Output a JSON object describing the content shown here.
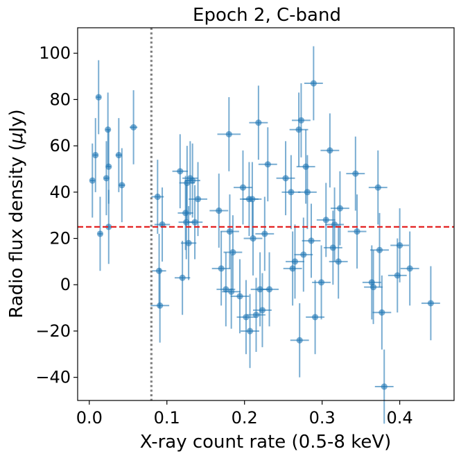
{
  "chart_data": {
    "type": "scatter",
    "title": "Epoch 2, C-band",
    "xlabel": "X-ray count rate (0.5-8 keV)",
    "ylabel_prefix": "Radio flux density (",
    "ylabel_mu": "μ",
    "ylabel_suffix": "Jy)",
    "xlim": [
      -0.015,
      0.47
    ],
    "ylim": [
      -50,
      111
    ],
    "xticks": [
      0.0,
      0.1,
      0.2,
      0.3,
      0.4
    ],
    "xtick_labels": [
      "0.0",
      "0.1",
      "0.2",
      "0.3",
      "0.4"
    ],
    "yticks": [
      -40,
      -20,
      0,
      20,
      40,
      60,
      80,
      100
    ],
    "ytick_labels": [
      "−40",
      "−20",
      "0",
      "20",
      "40",
      "60",
      "80",
      "100"
    ],
    "threshold_y": 25,
    "threshold_color": "#e32020",
    "vline_x": 0.08,
    "vline_color": "#808080",
    "marker_color": "#1f77b4",
    "points": [
      {
        "x": 0.004,
        "y": 45,
        "xerr": 0.003,
        "yerr": 16
      },
      {
        "x": 0.008,
        "y": 56,
        "xerr": 0.003,
        "yerr": 16
      },
      {
        "x": 0.012,
        "y": 81,
        "xerr": 0.003,
        "yerr": 16
      },
      {
        "x": 0.014,
        "y": 22,
        "xerr": 0.003,
        "yerr": 16
      },
      {
        "x": 0.022,
        "y": 46,
        "xerr": 0.003,
        "yerr": 16
      },
      {
        "x": 0.024,
        "y": 67,
        "xerr": 0.003,
        "yerr": 16
      },
      {
        "x": 0.025,
        "y": 51,
        "xerr": 0.003,
        "yerr": 16
      },
      {
        "x": 0.025,
        "y": 25,
        "xerr": 0.003,
        "yerr": 16
      },
      {
        "x": 0.038,
        "y": 56,
        "xerr": 0.004,
        "yerr": 16
      },
      {
        "x": 0.042,
        "y": 43,
        "xerr": 0.004,
        "yerr": 16
      },
      {
        "x": 0.057,
        "y": 68,
        "xerr": 0.005,
        "yerr": 16
      },
      {
        "x": 0.088,
        "y": 38,
        "xerr": 0.008,
        "yerr": 16
      },
      {
        "x": 0.09,
        "y": 6,
        "xerr": 0.009,
        "yerr": 16
      },
      {
        "x": 0.091,
        "y": -9,
        "xerr": 0.012,
        "yerr": 16
      },
      {
        "x": 0.094,
        "y": 26,
        "xerr": 0.01,
        "yerr": 16
      },
      {
        "x": 0.117,
        "y": 49,
        "xerr": 0.01,
        "yerr": 16
      },
      {
        "x": 0.12,
        "y": 3,
        "xerr": 0.01,
        "yerr": 16
      },
      {
        "x": 0.124,
        "y": 31,
        "xerr": 0.01,
        "yerr": 16
      },
      {
        "x": 0.125,
        "y": 27,
        "xerr": 0.01,
        "yerr": 16
      },
      {
        "x": 0.126,
        "y": 44,
        "xerr": 0.01,
        "yerr": 16
      },
      {
        "x": 0.128,
        "y": 18,
        "xerr": 0.01,
        "yerr": 16
      },
      {
        "x": 0.13,
        "y": 46,
        "xerr": 0.01,
        "yerr": 16
      },
      {
        "x": 0.133,
        "y": 45,
        "xerr": 0.01,
        "yerr": 16
      },
      {
        "x": 0.136,
        "y": 27,
        "xerr": 0.01,
        "yerr": 16
      },
      {
        "x": 0.14,
        "y": 37,
        "xerr": 0.012,
        "yerr": 16
      },
      {
        "x": 0.167,
        "y": 32,
        "xerr": 0.012,
        "yerr": 16
      },
      {
        "x": 0.17,
        "y": 7,
        "xerr": 0.012,
        "yerr": 16
      },
      {
        "x": 0.176,
        "y": -2,
        "xerr": 0.012,
        "yerr": 16
      },
      {
        "x": 0.18,
        "y": 65,
        "xerr": 0.015,
        "yerr": 16
      },
      {
        "x": 0.181,
        "y": 23,
        "xerr": 0.012,
        "yerr": 16
      },
      {
        "x": 0.183,
        "y": -3,
        "xerr": 0.012,
        "yerr": 16
      },
      {
        "x": 0.185,
        "y": 14,
        "xerr": 0.012,
        "yerr": 16
      },
      {
        "x": 0.194,
        "y": -5,
        "xerr": 0.012,
        "yerr": 16
      },
      {
        "x": 0.198,
        "y": 42,
        "xerr": 0.012,
        "yerr": 16
      },
      {
        "x": 0.202,
        "y": -14,
        "xerr": 0.012,
        "yerr": 16
      },
      {
        "x": 0.206,
        "y": 37,
        "xerr": 0.012,
        "yerr": 16
      },
      {
        "x": 0.207,
        "y": -20,
        "xerr": 0.012,
        "yerr": 16
      },
      {
        "x": 0.21,
        "y": 37,
        "xerr": 0.012,
        "yerr": 16
      },
      {
        "x": 0.211,
        "y": 20,
        "xerr": 0.012,
        "yerr": 16
      },
      {
        "x": 0.215,
        "y": -13,
        "xerr": 0.012,
        "yerr": 16
      },
      {
        "x": 0.218,
        "y": 70,
        "xerr": 0.012,
        "yerr": 16
      },
      {
        "x": 0.22,
        "y": -2,
        "xerr": 0.012,
        "yerr": 16
      },
      {
        "x": 0.223,
        "y": -11,
        "xerr": 0.012,
        "yerr": 16
      },
      {
        "x": 0.226,
        "y": 22,
        "xerr": 0.012,
        "yerr": 16
      },
      {
        "x": 0.23,
        "y": 52,
        "xerr": 0.012,
        "yerr": 16
      },
      {
        "x": 0.232,
        "y": -2,
        "xerr": 0.012,
        "yerr": 16
      },
      {
        "x": 0.253,
        "y": 46,
        "xerr": 0.012,
        "yerr": 16
      },
      {
        "x": 0.26,
        "y": 40,
        "xerr": 0.012,
        "yerr": 16
      },
      {
        "x": 0.262,
        "y": 7,
        "xerr": 0.012,
        "yerr": 16
      },
      {
        "x": 0.265,
        "y": 10,
        "xerr": 0.012,
        "yerr": 16
      },
      {
        "x": 0.27,
        "y": 67,
        "xerr": 0.012,
        "yerr": 16
      },
      {
        "x": 0.271,
        "y": -24,
        "xerr": 0.012,
        "yerr": 16
      },
      {
        "x": 0.273,
        "y": 71,
        "xerr": 0.012,
        "yerr": 16
      },
      {
        "x": 0.276,
        "y": 13,
        "xerr": 0.012,
        "yerr": 16
      },
      {
        "x": 0.279,
        "y": 51,
        "xerr": 0.012,
        "yerr": 16
      },
      {
        "x": 0.281,
        "y": 40,
        "xerr": 0.012,
        "yerr": 16
      },
      {
        "x": 0.286,
        "y": 19,
        "xerr": 0.012,
        "yerr": 16
      },
      {
        "x": 0.289,
        "y": 87,
        "xerr": 0.012,
        "yerr": 16
      },
      {
        "x": 0.291,
        "y": -14,
        "xerr": 0.012,
        "yerr": 16
      },
      {
        "x": 0.299,
        "y": 1,
        "xerr": 0.012,
        "yerr": 16
      },
      {
        "x": 0.305,
        "y": 28,
        "xerr": 0.012,
        "yerr": 16
      },
      {
        "x": 0.31,
        "y": 58,
        "xerr": 0.012,
        "yerr": 16
      },
      {
        "x": 0.314,
        "y": 16,
        "xerr": 0.012,
        "yerr": 16
      },
      {
        "x": 0.316,
        "y": 26,
        "xerr": 0.012,
        "yerr": 16
      },
      {
        "x": 0.321,
        "y": 10,
        "xerr": 0.012,
        "yerr": 16
      },
      {
        "x": 0.323,
        "y": 33,
        "xerr": 0.012,
        "yerr": 16
      },
      {
        "x": 0.343,
        "y": 48,
        "xerr": 0.012,
        "yerr": 16
      },
      {
        "x": 0.345,
        "y": 23,
        "xerr": 0.012,
        "yerr": 16
      },
      {
        "x": 0.364,
        "y": 1,
        "xerr": 0.012,
        "yerr": 16
      },
      {
        "x": 0.366,
        "y": -1,
        "xerr": 0.012,
        "yerr": 16
      },
      {
        "x": 0.372,
        "y": 42,
        "xerr": 0.012,
        "yerr": 16
      },
      {
        "x": 0.374,
        "y": 15,
        "xerr": 0.012,
        "yerr": 16
      },
      {
        "x": 0.377,
        "y": -12,
        "xerr": 0.012,
        "yerr": 16
      },
      {
        "x": 0.38,
        "y": -44,
        "xerr": 0.012,
        "yerr": 16
      },
      {
        "x": 0.397,
        "y": 4,
        "xerr": 0.012,
        "yerr": 16
      },
      {
        "x": 0.4,
        "y": 17,
        "xerr": 0.012,
        "yerr": 16
      },
      {
        "x": 0.413,
        "y": 7,
        "xerr": 0.012,
        "yerr": 16
      },
      {
        "x": 0.44,
        "y": -8,
        "xerr": 0.012,
        "yerr": 16
      }
    ]
  }
}
